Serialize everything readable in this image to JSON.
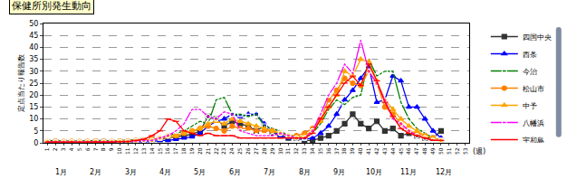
{
  "chart_data": {
    "type": "line",
    "title": "保健所別発生動向",
    "y_label": "定点当たり報告数",
    "x_label": "(週)",
    "months": [
      "1月",
      "2月",
      "3月",
      "4月",
      "5月",
      "6月",
      "7月",
      "8月",
      "9月",
      "10月",
      "11月",
      "12月"
    ],
    "x": [
      1,
      2,
      3,
      4,
      5,
      6,
      7,
      8,
      9,
      10,
      11,
      12,
      13,
      14,
      15,
      16,
      17,
      18,
      19,
      20,
      21,
      22,
      23,
      24,
      25,
      26,
      27,
      28,
      29,
      30,
      31,
      32,
      33,
      34,
      35,
      36,
      37,
      38,
      39,
      40,
      41,
      42,
      43,
      44,
      45,
      46,
      47,
      48,
      49,
      50,
      51,
      52,
      53
    ],
    "xlim": [
      0.5,
      53.5
    ],
    "xticks": [
      1,
      2,
      3,
      4,
      5,
      6,
      7,
      8,
      9,
      10,
      11,
      12,
      13,
      14,
      15,
      16,
      17,
      18,
      19,
      20,
      21,
      22,
      23,
      24,
      25,
      26,
      27,
      28,
      29,
      30,
      31,
      32,
      33,
      34,
      35,
      36,
      37,
      38,
      39,
      40,
      41,
      42,
      43,
      44,
      45,
      46,
      47,
      48,
      49,
      50,
      51,
      52,
      53
    ],
    "ylim": [
      0,
      50
    ],
    "yticks": [
      0,
      5,
      10,
      15,
      20,
      25,
      30,
      35,
      40,
      45,
      50
    ],
    "grid": true,
    "legend": "right",
    "series": [
      {
        "name": "四国中央",
        "color": "#333333",
        "marker": "square",
        "values": [
          0.3,
          0.5,
          0.3,
          0.5,
          0.4,
          0.3,
          0.5,
          0.5,
          0.3,
          0.5,
          0.5,
          0.8,
          1,
          1.2,
          1.5,
          2,
          2.5,
          3,
          3.5,
          5,
          11,
          10,
          7,
          9,
          8,
          7,
          5,
          7,
          4,
          3,
          2,
          2,
          1,
          1,
          2,
          3,
          5,
          8,
          12,
          8,
          6,
          9,
          5,
          6,
          3,
          4,
          3,
          2,
          2,
          5,
          null,
          null,
          null
        ]
      },
      {
        "name": "西条",
        "color": "#0000ff",
        "marker": "triangle-up",
        "values": [
          0.2,
          0.3,
          0.2,
          0.3,
          0.3,
          0.2,
          0.3,
          0.3,
          0.2,
          0.3,
          0.4,
          0.4,
          0.5,
          0.5,
          1,
          1,
          1.5,
          2,
          2.5,
          4,
          7,
          9,
          10,
          12,
          11,
          12,
          12,
          8,
          5,
          3,
          2,
          2,
          1.5,
          2,
          4,
          7,
          12,
          18,
          22,
          27,
          32,
          17,
          18,
          28,
          26,
          15,
          15,
          10,
          5,
          2,
          null,
          null,
          null
        ]
      },
      {
        "name": "今治",
        "color": "#008000",
        "marker": "square-open",
        "values": [
          1,
          1,
          0.8,
          0.7,
          0.8,
          0.8,
          1,
          1,
          0.8,
          1,
          1,
          1.2,
          1.5,
          1,
          2,
          3,
          4,
          5,
          7,
          9,
          8,
          18,
          19,
          12,
          12,
          11,
          12,
          7,
          6,
          5,
          3,
          3,
          2,
          4,
          8,
          14,
          18,
          16,
          19,
          20,
          35,
          28,
          30,
          30,
          17,
          10,
          6,
          4,
          2,
          1,
          null,
          null,
          null
        ]
      },
      {
        "name": "松山市",
        "color": "#ff8000",
        "marker": "circle",
        "values": [
          0.5,
          0.6,
          0.5,
          0.6,
          0.5,
          0.6,
          0.7,
          0.6,
          0.6,
          0.7,
          0.8,
          1,
          1.2,
          1.5,
          2,
          3,
          3,
          4,
          5,
          6,
          7,
          6,
          5,
          7,
          6,
          6,
          5,
          5,
          5,
          4,
          3,
          3,
          4,
          6,
          10,
          18,
          22,
          27,
          25,
          24,
          30,
          25,
          15,
          12,
          8,
          5,
          4,
          3,
          2,
          1,
          null,
          null,
          null
        ]
      },
      {
        "name": "中予",
        "color": "#ffa500",
        "marker": "triangle-up",
        "values": [
          0.4,
          0.5,
          0.4,
          0.5,
          0.4,
          0.5,
          0.6,
          0.5,
          0.5,
          0.6,
          0.7,
          0.9,
          1,
          1.2,
          1.8,
          2.5,
          3,
          4,
          5,
          6,
          8,
          9,
          8,
          10,
          9,
          8,
          7,
          6,
          5,
          4,
          3,
          2,
          3,
          5,
          9,
          15,
          20,
          30,
          28,
          35,
          34,
          26,
          18,
          14,
          10,
          7,
          5,
          3,
          2,
          1,
          null,
          null,
          null
        ]
      },
      {
        "name": "八幡浜",
        "color": "#ff00ff",
        "marker": "circle-open",
        "values": [
          0.5,
          0.4,
          0.3,
          0.4,
          0.3,
          0.4,
          0.5,
          0.4,
          0.5,
          0.5,
          0.6,
          0.8,
          1,
          1,
          2,
          3,
          5,
          8,
          14,
          14,
          11,
          10,
          13,
          12,
          5,
          4,
          3,
          3,
          3,
          4,
          3,
          2,
          2,
          5,
          12,
          20,
          25,
          33,
          29,
          43,
          30,
          25,
          18,
          10,
          8,
          5,
          3,
          2,
          1,
          1,
          null,
          null,
          null
        ]
      },
      {
        "name": "宇和島",
        "color": "#ff0000",
        "marker": "line-ew",
        "values": [
          0.3,
          0.3,
          0.2,
          0.3,
          0.2,
          0.3,
          0.4,
          0.3,
          0.3,
          0.5,
          0.5,
          1,
          1.5,
          3,
          5,
          10,
          9,
          5,
          4,
          3,
          4,
          3,
          3,
          3,
          2,
          2,
          2,
          2,
          2,
          2,
          2,
          2,
          2,
          4,
          10,
          15,
          20,
          25,
          28,
          24,
          33,
          26,
          17,
          11,
          6,
          4,
          3,
          2,
          1,
          1,
          null,
          null,
          null
        ]
      }
    ]
  }
}
